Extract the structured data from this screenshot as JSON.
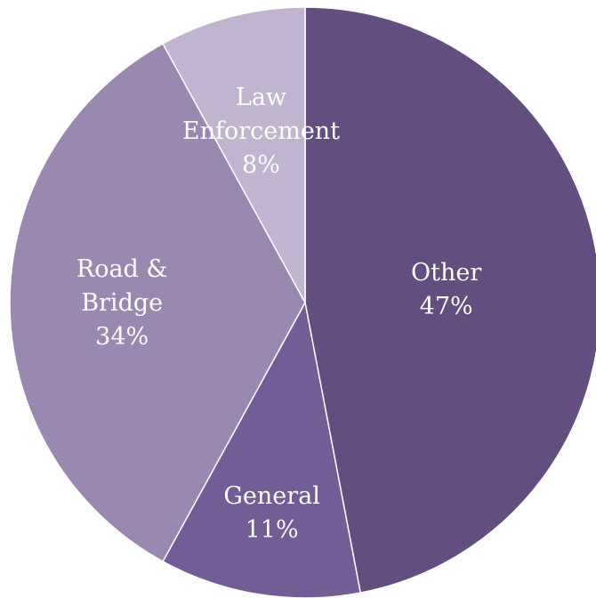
{
  "chart_data": {
    "type": "pie",
    "title": "",
    "start_angle_deg": 0,
    "direction": "clockwise",
    "slices": [
      {
        "label_lines": [
          "Other"
        ],
        "pct_label": "47%",
        "value": 47,
        "color": "#634e7f"
      },
      {
        "label_lines": [
          "General"
        ],
        "pct_label": "11%",
        "value": 11,
        "color": "#745c97"
      },
      {
        "label_lines": [
          "Road &",
          "Bridge"
        ],
        "pct_label": "34%",
        "value": 34,
        "color": "#9a88b0"
      },
      {
        "label_lines": [
          "Law",
          "Enforcement"
        ],
        "pct_label": "8%",
        "value": 8,
        "color": "#c1b4cf"
      }
    ]
  }
}
